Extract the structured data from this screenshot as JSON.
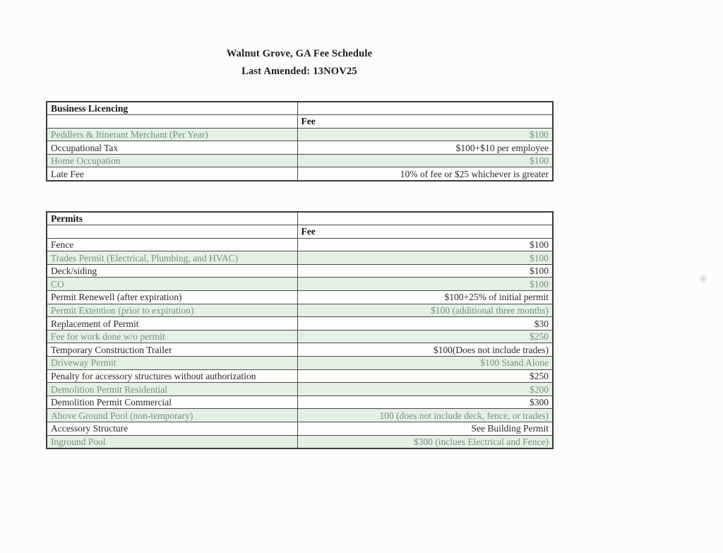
{
  "page": {
    "title": "Walnut Grove, GA Fee Schedule",
    "subtitle": "Last Amended: 13NOV25"
  },
  "tables": [
    {
      "section": "Business Licencing",
      "fee_header": "Fee",
      "rows": [
        {
          "item": "Peddlers & Itinerant Merchant (Per Year)",
          "fee": "$100",
          "shaded": true
        },
        {
          "item": "Occupational Tax",
          "fee": "$100+$10 per employee",
          "shaded": false
        },
        {
          "item": "Home Occupation",
          "fee": "$100",
          "shaded": true
        },
        {
          "item": "Late Fee",
          "fee": "10% of fee or $25 whichever is greater",
          "shaded": false
        }
      ]
    },
    {
      "section": "Permits",
      "fee_header": "Fee",
      "rows": [
        {
          "item": "Fence",
          "fee": "$100",
          "shaded": false
        },
        {
          "item": "Trades Permit (Electrical, Plumbing, and HVAC)",
          "fee": "$100",
          "shaded": true
        },
        {
          "item": "Deck/siding",
          "fee": "$100",
          "shaded": false
        },
        {
          "item": "CO",
          "fee": "$100",
          "shaded": true
        },
        {
          "item": "Permit Renewell (after expiration)",
          "fee": "$100+25% of initial permit",
          "shaded": false
        },
        {
          "item": "Permit Extention (prior to expiration)",
          "fee": "$100 (additional three months)",
          "shaded": true
        },
        {
          "item": "Replacement of Permit",
          "fee": "$30",
          "shaded": false
        },
        {
          "item": "Fee for work done w/o permit",
          "fee": "$250",
          "shaded": true
        },
        {
          "item": "Temporary Construction Trailer",
          "fee": "$100(Does not include trades)",
          "shaded": false
        },
        {
          "item": "Driveway Permit",
          "fee": "$100 Stand Alone",
          "shaded": true
        },
        {
          "item": "Penalty for accessory structures without authorization",
          "fee": "$250",
          "shaded": false
        },
        {
          "item": "Demolition Permit Residential",
          "fee": "$200",
          "shaded": true
        },
        {
          "item": "Demolition Permit Commercial",
          "fee": "$300",
          "shaded": false
        },
        {
          "item": "Above Ground Pool (non-temporary)",
          "fee": "100 (does not include deck, fence, or trades)",
          "shaded": true
        },
        {
          "item": "Accessory Structure",
          "fee": "See Building Permit",
          "shaded": false
        },
        {
          "item": "Inground Pool",
          "fee": "$300 (inclues Electrical and Fence)",
          "shaded": true
        }
      ]
    }
  ],
  "colors": {
    "shaded_row_bg": "#e3f1e5",
    "shaded_row_text": "#74917f",
    "body_text": "#2b2b2a",
    "header_text": "#131313",
    "border": "#4a4a48",
    "page_bg": "#fcfcfb"
  }
}
